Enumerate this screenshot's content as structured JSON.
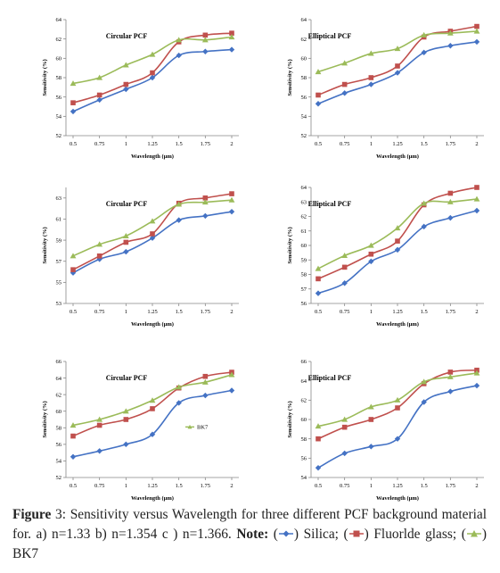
{
  "colors": {
    "silica": "#4472C4",
    "fluoride": "#C0504D",
    "bk7": "#9BBB59"
  },
  "chart_data": [
    {
      "type": "line",
      "title": "Circular PCF",
      "xlabel": "Wavelength (µm)",
      "ylabel": "Sensitivity (%)",
      "categories": [
        "0.5",
        "0.75",
        "1",
        "1.25",
        "1.5",
        "1.75",
        "2"
      ],
      "yticks": [
        "52",
        "54",
        "56",
        "58",
        "60",
        "62",
        "64"
      ],
      "ylim": [
        52,
        64
      ],
      "series": [
        {
          "values": [
            54.5,
            55.7,
            56.8,
            58.0,
            60.3,
            60.7,
            60.9
          ]
        },
        {
          "values": [
            55.4,
            56.2,
            57.3,
            58.5,
            61.7,
            62.4,
            62.6
          ]
        },
        {
          "values": [
            57.4,
            58.0,
            59.3,
            60.4,
            61.9,
            61.9,
            62.2
          ]
        }
      ]
    },
    {
      "type": "line",
      "title": "Elliptical PCF",
      "xlabel": "Wavelength (µm)",
      "ylabel": "Sensitivity (%)",
      "categories": [
        "0.5",
        "0.75",
        "1",
        "1.25",
        "1.5",
        "1.75",
        "2"
      ],
      "yticks": [
        "52",
        "54",
        "56",
        "58",
        "60",
        "62",
        "64"
      ],
      "ylim": [
        52,
        64
      ],
      "series": [
        {
          "values": [
            55.3,
            56.4,
            57.3,
            58.5,
            60.6,
            61.3,
            61.7
          ]
        },
        {
          "values": [
            56.2,
            57.3,
            58.0,
            59.2,
            62.2,
            62.8,
            63.3
          ]
        },
        {
          "values": [
            58.6,
            59.5,
            60.5,
            61.0,
            62.4,
            62.6,
            62.8
          ]
        }
      ]
    },
    {
      "type": "line",
      "title": "Circular PCF",
      "xlabel": "Wavelength (µm)",
      "ylabel": "Sensitivity (%)",
      "categories": [
        "0.5",
        "0.75",
        "1",
        "1.25",
        "1.5",
        "1.75",
        "2"
      ],
      "yticks": [
        "53",
        "55",
        "57",
        "59",
        "61",
        "63"
      ],
      "ylim": [
        53,
        64
      ],
      "series": [
        {
          "values": [
            55.9,
            57.2,
            57.9,
            59.2,
            60.9,
            61.3,
            61.7
          ]
        },
        {
          "values": [
            56.2,
            57.5,
            58.8,
            59.6,
            62.5,
            63.0,
            63.4
          ]
        },
        {
          "values": [
            57.5,
            58.6,
            59.4,
            60.8,
            62.4,
            62.6,
            62.8
          ]
        }
      ]
    },
    {
      "type": "line",
      "title": "Elliptical PCF",
      "xlabel": "Wavelength (µm)",
      "ylabel": "Sensitivity (%)",
      "categories": [
        "0.5",
        "0.75",
        "1",
        "1.25",
        "1.5",
        "1.75",
        "2"
      ],
      "yticks": [
        "56",
        "57",
        "58",
        "59",
        "60",
        "61",
        "62",
        "63",
        "64"
      ],
      "ylim": [
        56,
        64
      ],
      "series": [
        {
          "values": [
            56.7,
            57.4,
            58.9,
            59.7,
            61.3,
            61.9,
            62.4
          ]
        },
        {
          "values": [
            57.7,
            58.5,
            59.4,
            60.3,
            62.8,
            63.6,
            64.0
          ]
        },
        {
          "values": [
            58.4,
            59.3,
            60.0,
            61.2,
            62.9,
            63.0,
            63.2
          ]
        }
      ]
    },
    {
      "type": "line",
      "title": "Circular PCF",
      "xlabel": "Wavelength (µm)",
      "ylabel": "Sensitivity (%)",
      "categories": [
        "0.5",
        "0.75",
        "1",
        "1.25",
        "1.5",
        "1.75",
        "2"
      ],
      "yticks": [
        "52",
        "54",
        "56",
        "58",
        "60",
        "62",
        "64",
        "66"
      ],
      "ylim": [
        52,
        66
      ],
      "legend_fragment": "BK7",
      "series": [
        {
          "values": [
            54.5,
            55.2,
            56.0,
            57.2,
            61.0,
            61.9,
            62.5
          ]
        },
        {
          "values": [
            57.0,
            58.3,
            59.0,
            60.3,
            62.8,
            64.2,
            64.7
          ]
        },
        {
          "values": [
            58.3,
            59.0,
            60.0,
            61.3,
            62.9,
            63.5,
            64.4
          ]
        }
      ]
    },
    {
      "type": "line",
      "title": "Elliptical PCF",
      "xlabel": "Wavelength (µm)",
      "ylabel": "Sensitivity (%)",
      "categories": [
        "0.5",
        "0.75",
        "1",
        "1.25",
        "1.5",
        "1.75",
        "2"
      ],
      "yticks": [
        "54",
        "56",
        "58",
        "60",
        "62",
        "64",
        "66"
      ],
      "ylim": [
        54,
        66
      ],
      "series": [
        {
          "values": [
            55.0,
            56.5,
            57.2,
            58.0,
            61.8,
            62.9,
            63.5
          ]
        },
        {
          "values": [
            58.0,
            59.2,
            60.0,
            61.2,
            63.7,
            64.9,
            65.1
          ]
        },
        {
          "values": [
            59.3,
            60.0,
            61.3,
            62.0,
            63.9,
            64.4,
            64.8
          ]
        }
      ]
    }
  ],
  "caption": {
    "figure_label": "Figure",
    "number": "3:",
    "text": "Sensitivity versus Wavelength for three different PCF background material for. a) n=1.33  b) n=1.354  c ) n=1.366.",
    "note_label": "Note:",
    "open": "(",
    "close": ")",
    "silica": "Silica;",
    "fluoride": "Fluorlde glass;",
    "bk7": "BK7"
  }
}
